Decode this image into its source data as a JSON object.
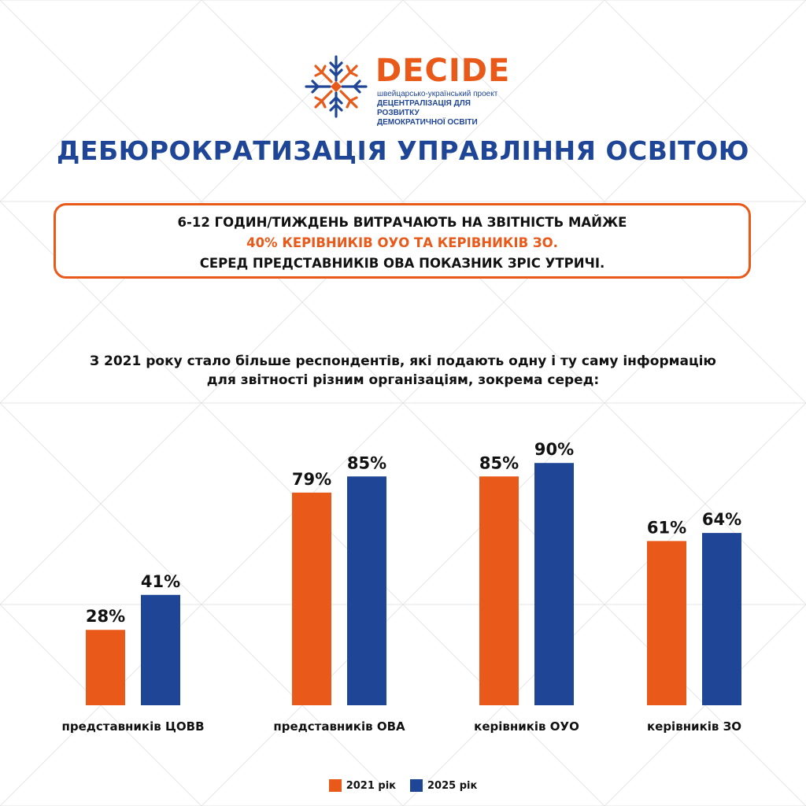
{
  "colors": {
    "orange": "#e8591a",
    "blue": "#1f4597",
    "text": "#111111",
    "grid": "#e4e4e4"
  },
  "logo": {
    "name": "DECIDE",
    "subtitle_line1": "швейцарсько-український проект",
    "subtitle_line2": "ДЕЦЕНТРАЛІЗАЦІЯ ДЛЯ РОЗВИТКУ",
    "subtitle_line3": "ДЕМОКРАТИЧНОЇ ОСВІТИ"
  },
  "title": "ДЕБЮРОКРАТИЗАЦІЯ УПРАВЛІННЯ ОСВІТОЮ",
  "callout": {
    "line1": "6-12 ГОДИН/ТИЖДЕНЬ ВИТРАЧАЮТЬ НА ЗВІТНІСТЬ МАЙЖЕ",
    "line2": "40% КЕРІВНИКІВ ОУО ТА КЕРІВНИКІВ ЗО.",
    "line3": "СЕРЕД ПРЕДСТАВНИКІВ ОВА ПОКАЗНИК ЗРІС УТРИЧІ."
  },
  "subtitle": {
    "line1": "З 2021 року стало більше респондентів, які подають одну і ту саму інформацію",
    "line2": "для звітності різним організаціям, зокрема серед:"
  },
  "chart_data": {
    "type": "bar",
    "title": "",
    "xlabel": "",
    "ylabel": "",
    "ylim": [
      0,
      100
    ],
    "grid": false,
    "legend_position": "bottom-center",
    "categories": [
      "представників ЦОВВ",
      "представників ОВА",
      "керівників ОУО",
      "керівників ЗО"
    ],
    "series": [
      {
        "name": "2021 рік",
        "color": "#e8591a",
        "values": [
          28,
          79,
          85,
          61
        ],
        "labels": [
          "28%",
          "79%",
          "85%",
          "61%"
        ]
      },
      {
        "name": "2025 рік",
        "color": "#1f4597",
        "values": [
          41,
          85,
          90,
          64
        ],
        "labels": [
          "41%",
          "85%",
          "90%",
          "64%"
        ]
      }
    ]
  }
}
